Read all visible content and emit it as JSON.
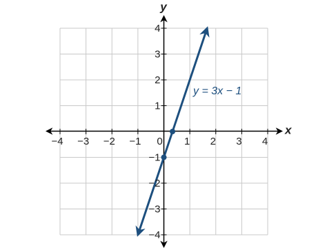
{
  "chart_data": {
    "type": "line",
    "xlabel": "x",
    "ylabel": "y",
    "xlim": [
      -4,
      4
    ],
    "ylim": [
      -4,
      4
    ],
    "grid": true,
    "xticks": [
      {
        "value": -4,
        "label": "−4"
      },
      {
        "value": -3,
        "label": "−3"
      },
      {
        "value": -2,
        "label": "−2"
      },
      {
        "value": -1,
        "label": "−1"
      },
      0,
      1,
      2,
      3,
      4
    ],
    "yticks": [
      {
        "value": -4,
        "label": "−4"
      },
      {
        "value": -3,
        "label": "−3"
      },
      {
        "value": -2,
        "label": "−2"
      },
      {
        "value": -1,
        "label": "−1"
      },
      1,
      2,
      3,
      4
    ],
    "series": [
      {
        "name": "y = 3x − 1",
        "color": "#1d4f7e",
        "x": [
          -1,
          1.667
        ],
        "values": [
          -4,
          4
        ]
      },
      {
        "type": "scatter",
        "color": "#1d4f7e",
        "x": [
          0,
          0.333
        ],
        "values": [
          -1,
          0
        ]
      }
    ]
  }
}
